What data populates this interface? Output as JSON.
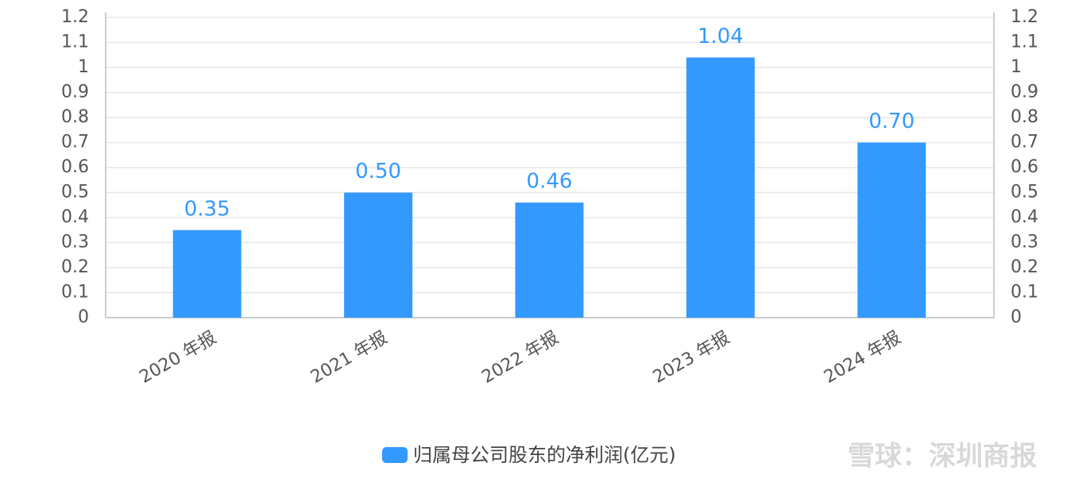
{
  "chart_data": {
    "type": "bar",
    "categories": [
      "2020 年报",
      "2021 年报",
      "2022 年报",
      "2023 年报",
      "2024 年报"
    ],
    "series": [
      {
        "name": "归属母公司股东的净利润(亿元)",
        "color": "#3399ff",
        "values": [
          0.35,
          0.5,
          0.46,
          1.04,
          0.7
        ],
        "value_labels": [
          "0.35",
          "0.50",
          "0.46",
          "1.04",
          "0.70"
        ]
      }
    ],
    "ylim": [
      0,
      1.2
    ],
    "yticks": [
      0,
      0.1,
      0.2,
      0.3,
      0.4,
      0.5,
      0.6,
      0.7,
      0.8,
      0.9,
      1,
      1.1,
      1.2
    ],
    "y2lim": [
      0,
      1.2
    ],
    "y2ticks": [
      0,
      0.1,
      0.2,
      0.3,
      0.4,
      0.5,
      0.6,
      0.7,
      0.8,
      0.9,
      1,
      1.1,
      1.2
    ],
    "grid": true,
    "legend": "bottom",
    "watermark": "雪球：深圳商报"
  }
}
